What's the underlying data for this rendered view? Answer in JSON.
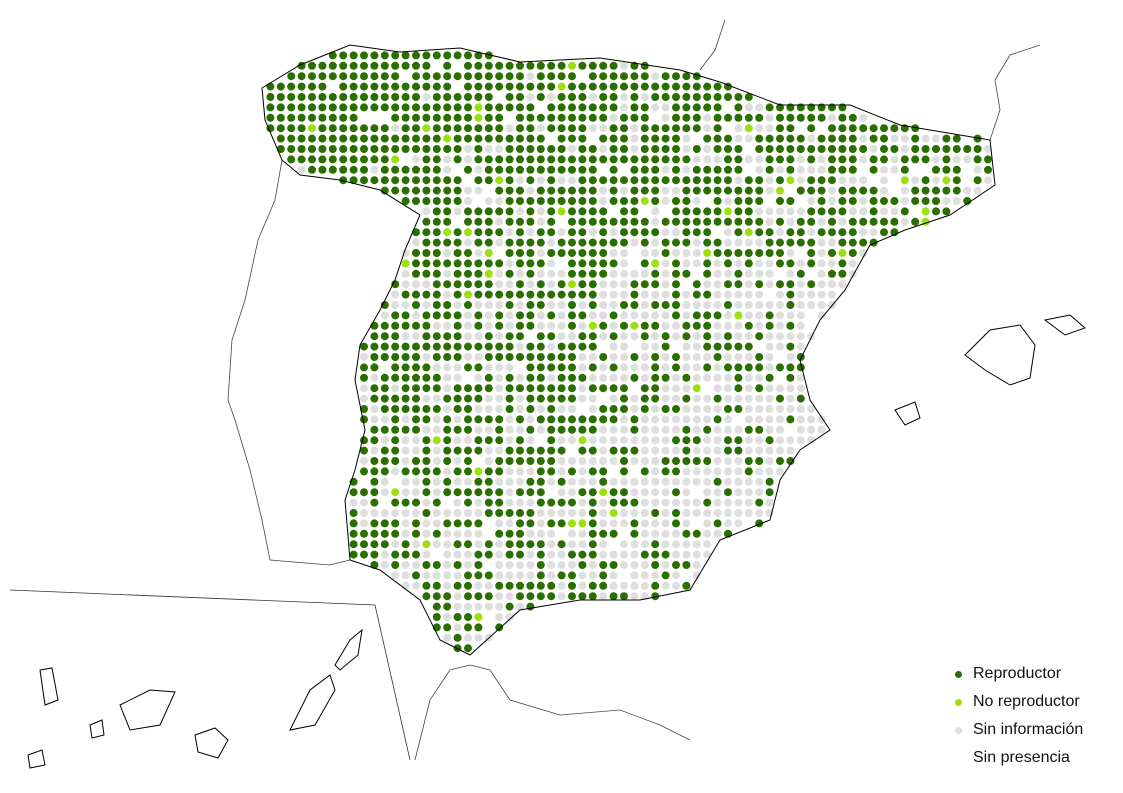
{
  "colors": {
    "reproductor": "#2a6e00",
    "no_reproductor": "#9de010",
    "sin_informacion": "#dedede",
    "sin_presencia": "#ffffff",
    "border": "#000000"
  },
  "legend": [
    {
      "key": "reproductor",
      "label": "Reproductor"
    },
    {
      "key": "no_reproductor",
      "label": "No reproductor"
    },
    {
      "key": "sin_informacion",
      "label": "Sin información"
    },
    {
      "key": "sin_presencia",
      "label": "Sin presencia"
    }
  ]
}
